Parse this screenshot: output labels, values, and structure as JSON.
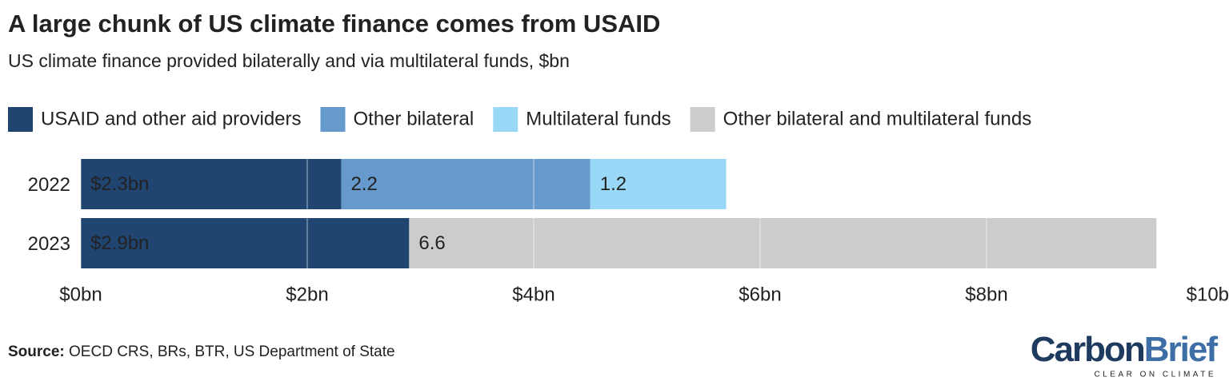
{
  "chart_data": {
    "type": "stacked-bar-horizontal",
    "title": "A large chunk of US climate finance comes from USAID",
    "subtitle": "US climate finance provided bilaterally and via multilateral funds, $bn",
    "categories": [
      "2022",
      "2023"
    ],
    "series": [
      {
        "name": "USAID and other aid providers",
        "color": "#1f4570",
        "values": [
          2.3,
          2.9
        ],
        "value_labels": [
          "$2.3bn",
          "$2.9bn"
        ]
      },
      {
        "name": "Other bilateral",
        "color": "#6699cc",
        "values": [
          2.2,
          null
        ]
      },
      {
        "name": "Multilateral funds",
        "color": "#99d9f7",
        "values": [
          1.2,
          null
        ]
      },
      {
        "name": "Other bilateral and multilateral funds",
        "color": "#cccccc",
        "values": [
          null,
          6.6
        ]
      }
    ],
    "xlim": [
      0,
      10
    ],
    "xticks": [
      {
        "value": 0,
        "label": "$0bn"
      },
      {
        "value": 2,
        "label": "$2bn"
      },
      {
        "value": 4,
        "label": "$4bn"
      },
      {
        "value": 6,
        "label": "$6bn"
      },
      {
        "value": 8,
        "label": "$8bn"
      },
      {
        "value": 10,
        "label": "$10bn"
      }
    ],
    "grid": true,
    "source_label": "Source:",
    "source": "OECD CRS, BRs, BTR, US Department of State",
    "logo": {
      "first": "Carbon",
      "second": "Brief",
      "tagline": "CLEAR ON CLIMATE"
    }
  }
}
